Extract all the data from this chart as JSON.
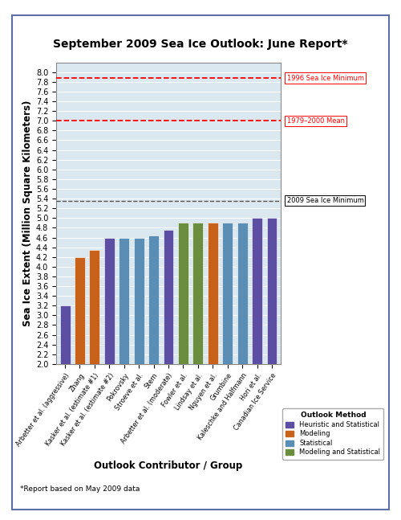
{
  "title": "September 2009 Sea Ice Outlook: June Report*",
  "xlabel": "Outlook Contributor / Group",
  "ylabel": "Sea Ice Extent (Million Square Kilometers)",
  "footnote": "*Report based on May 2009 data",
  "categories": [
    "Arbetter et al. (aggressive)",
    "Zhang",
    "Kasker et al. (estimate #1)",
    "Kasker et al. (estimate #2)",
    "Pokrovsky",
    "Stroeve et al.",
    "Stern",
    "Arbetter et al. (moderate)",
    "Fowler et al.",
    "Lindsay et al.",
    "Nguyen et al.",
    "Grumbine",
    "Kaleschke and Halfmann",
    "Hori et al.",
    "Canadian Ice Service"
  ],
  "values": [
    3.2,
    4.2,
    4.35,
    4.6,
    4.6,
    4.6,
    4.65,
    4.75,
    4.9,
    4.9,
    4.9,
    4.9,
    4.9,
    5.0,
    5.0
  ],
  "colors": [
    "#5b4ea3",
    "#c8621b",
    "#c8621b",
    "#5b4ea3",
    "#5a8eb5",
    "#5a8eb5",
    "#5a8eb5",
    "#5b4ea3",
    "#6b8e3e",
    "#6b8e3e",
    "#c8621b",
    "#5a8eb5",
    "#5a8eb5",
    "#5b4ea3",
    "#5b4ea3"
  ],
  "ylim": [
    2.0,
    8.2
  ],
  "yticks": [
    2.0,
    2.2,
    2.4,
    2.6,
    2.8,
    3.0,
    3.2,
    3.4,
    3.6,
    3.8,
    4.0,
    4.2,
    4.4,
    4.6,
    4.8,
    5.0,
    5.2,
    5.4,
    5.6,
    5.8,
    6.0,
    6.2,
    6.4,
    6.6,
    6.8,
    7.0,
    7.2,
    7.4,
    7.6,
    7.8,
    8.0
  ],
  "hline_1996": 7.88,
  "hline_mean": 7.0,
  "hline_2009": 5.36,
  "hline_1996_label": "1996 Sea Ice Minimum",
  "hline_mean_label": "1979–2000 Mean",
  "hline_2009_label": "2009 Sea Ice Minimum",
  "legend_title": "Outlook Method",
  "legend_entries": [
    {
      "label": "Heuristic and Statistical",
      "color": "#5b4ea3"
    },
    {
      "label": "Modeling",
      "color": "#c8621b"
    },
    {
      "label": "Statistical",
      "color": "#5a8eb5"
    },
    {
      "label": "Modeling and Statistical",
      "color": "#6b8e3e"
    }
  ],
  "bg_color": "#dce8f0",
  "outer_bg": "#ffffff",
  "border_color": "#5b6fa6",
  "grid_color": "#ffffff",
  "title_fontsize": 10,
  "axis_label_fontsize": 8.5,
  "tick_fontsize": 7,
  "bar_edge_color": "white",
  "bar_linewidth": 0.4
}
